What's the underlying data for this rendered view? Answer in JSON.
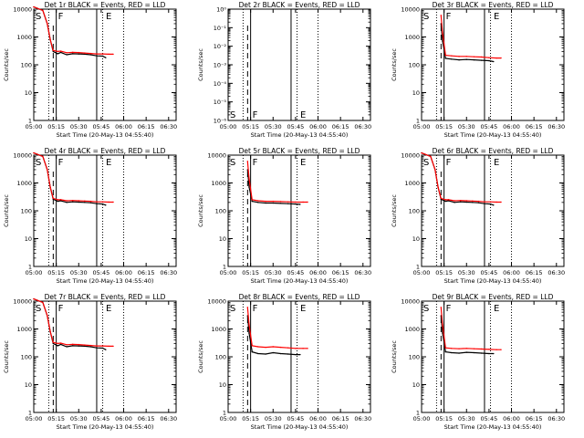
{
  "figure": {
    "xlabel": "Start Time (20-May-13 04:55:40)",
    "ylabel": "Counts/sec",
    "x_ticks": [
      "05:00",
      "05:15",
      "05:30",
      "05:45",
      "06:00",
      "06:15",
      "06:30"
    ],
    "colors": {
      "events": "#000000",
      "lld": "#ff0000",
      "axes": "#000000"
    }
  },
  "chart_data": [
    {
      "type": "line",
      "title": "Det 1r BLACK = Events, RED = LLD",
      "xlabel": "Start Time (20-May-13 04:55:40)",
      "ylabel": "Counts/sec",
      "x_unit": "minutes since 05:00",
      "xlim": [
        0,
        95
      ],
      "yscale": "log",
      "ylim": [
        1,
        10000
      ],
      "y_ticks": [
        "1",
        "10",
        "100",
        "1000",
        "10000"
      ],
      "flags": [
        "S",
        "F",
        "E"
      ],
      "vlines": {
        "dotted": [
          10,
          46,
          60
        ],
        "dashed": [
          13
        ],
        "solid": [
          15,
          42
        ]
      },
      "series": [
        {
          "name": "Events",
          "x": [
            0,
            6,
            9,
            11,
            13,
            16,
            18,
            22,
            26,
            30,
            34,
            38,
            42,
            46,
            48
          ],
          "y": [
            12000,
            9000,
            3000,
            800,
            300,
            250,
            280,
            230,
            250,
            245,
            240,
            230,
            210,
            205,
            180
          ]
        },
        {
          "name": "LLD",
          "x": [
            0,
            6,
            9,
            11,
            13,
            16,
            18,
            22,
            26,
            30,
            34,
            38,
            42,
            46,
            50,
            53
          ],
          "y": [
            12000,
            9000,
            3000,
            800,
            330,
            300,
            310,
            270,
            280,
            275,
            265,
            255,
            245,
            245,
            240,
            240
          ]
        }
      ]
    },
    {
      "type": "line",
      "title": "Det 2r BLACK = Events, RED = LLD",
      "xlabel": "Start Time (20-May-13 04:55:40)",
      "ylabel": "Counts/sec",
      "x_unit": "minutes since 05:00",
      "xlim": [
        0,
        95
      ],
      "yscale": "log",
      "ylim": [
        1e-06,
        1
      ],
      "y_ticks": [
        "10⁰",
        "10⁻¹",
        "10⁻²",
        "10⁻³",
        "10⁻⁴",
        "10⁻⁵",
        "10⁻⁶"
      ],
      "flags": [
        "S",
        "F",
        "E"
      ],
      "vlines": {
        "dotted": [
          10,
          46,
          60
        ],
        "dashed": [
          13
        ],
        "solid": [
          15,
          42
        ]
      },
      "series": []
    },
    {
      "type": "line",
      "title": "Det 3r BLACK = Events, RED = LLD",
      "xlabel": "Start Time (20-May-13 04:55:40)",
      "ylabel": "Counts/sec",
      "x_unit": "minutes since 05:00",
      "xlim": [
        0,
        95
      ],
      "yscale": "log",
      "ylim": [
        1,
        10000
      ],
      "y_ticks": [
        "1",
        "10",
        "100",
        "1000",
        "10000"
      ],
      "flags": [
        "S",
        "F",
        "E"
      ],
      "vlines": {
        "dotted": [
          10,
          46,
          60
        ],
        "dashed": [
          13
        ],
        "solid": [
          15,
          42
        ]
      },
      "series": [
        {
          "name": "Events",
          "x": [
            13,
            14,
            16,
            20,
            25,
            30,
            35,
            40,
            45,
            48
          ],
          "y": [
            3000,
            700,
            170,
            160,
            150,
            155,
            150,
            145,
            140,
            130
          ]
        },
        {
          "name": "LLD",
          "x": [
            13,
            14,
            16,
            20,
            25,
            30,
            35,
            40,
            45,
            50,
            53
          ],
          "y": [
            6000,
            1400,
            220,
            210,
            200,
            200,
            195,
            190,
            180,
            175,
            175
          ]
        }
      ]
    },
    {
      "type": "line",
      "title": "Det 4r BLACK = Events, RED = LLD",
      "xlabel": "Start Time (20-May-13 04:55:40)",
      "ylabel": "Counts/sec",
      "x_unit": "minutes since 05:00",
      "xlim": [
        0,
        95
      ],
      "yscale": "log",
      "ylim": [
        1,
        10000
      ],
      "y_ticks": [
        "1",
        "10",
        "100",
        "1000",
        "10000"
      ],
      "flags": [
        "S",
        "F",
        "E"
      ],
      "vlines": {
        "dotted": [
          10,
          46,
          60
        ],
        "dashed": [
          13
        ],
        "solid": [
          15,
          42
        ]
      },
      "series": [
        {
          "name": "Events",
          "x": [
            0,
            6,
            9,
            11,
            13,
            16,
            18,
            22,
            26,
            30,
            34,
            38,
            42,
            46,
            48
          ],
          "y": [
            12000,
            9000,
            3000,
            700,
            260,
            220,
            230,
            200,
            210,
            205,
            200,
            195,
            180,
            175,
            160
          ]
        },
        {
          "name": "LLD",
          "x": [
            0,
            6,
            9,
            11,
            13,
            16,
            18,
            22,
            26,
            30,
            34,
            38,
            42,
            46,
            50,
            53
          ],
          "y": [
            12000,
            9000,
            3000,
            700,
            280,
            250,
            250,
            230,
            235,
            230,
            225,
            220,
            210,
            210,
            205,
            205
          ]
        }
      ]
    },
    {
      "type": "line",
      "title": "Det 5r BLACK = Events, RED = LLD",
      "xlabel": "Start Time (20-May-13 04:55:40)",
      "ylabel": "Counts/sec",
      "x_unit": "minutes since 05:00",
      "xlim": [
        0,
        95
      ],
      "yscale": "log",
      "ylim": [
        1,
        10000
      ],
      "y_ticks": [
        "1",
        "10",
        "100",
        "1000",
        "10000"
      ],
      "flags": [
        "S",
        "F",
        "E"
      ],
      "vlines": {
        "dotted": [
          10,
          46,
          60
        ],
        "dashed": [
          13
        ],
        "solid": [
          15,
          42
        ]
      },
      "series": [
        {
          "name": "Events",
          "x": [
            13,
            14,
            16,
            20,
            25,
            30,
            35,
            40,
            45,
            48
          ],
          "y": [
            3000,
            700,
            220,
            200,
            190,
            190,
            185,
            180,
            175,
            170
          ]
        },
        {
          "name": "LLD",
          "x": [
            13,
            14,
            16,
            20,
            25,
            30,
            35,
            40,
            45,
            50,
            53
          ],
          "y": [
            6000,
            1400,
            250,
            230,
            220,
            220,
            215,
            210,
            205,
            205,
            205
          ]
        }
      ]
    },
    {
      "type": "line",
      "title": "Det 6r BLACK = Events, RED = LLD",
      "xlabel": "Start Time (20-May-13 04:55:40)",
      "ylabel": "Counts/sec",
      "x_unit": "minutes since 05:00",
      "xlim": [
        0,
        95
      ],
      "yscale": "log",
      "ylim": [
        1,
        10000
      ],
      "y_ticks": [
        "1",
        "10",
        "100",
        "1000",
        "10000"
      ],
      "flags": [
        "S",
        "F",
        "E"
      ],
      "vlines": {
        "dotted": [
          10,
          46,
          60
        ],
        "dashed": [
          13
        ],
        "solid": [
          15,
          42
        ]
      },
      "series": [
        {
          "name": "Events",
          "x": [
            0,
            6,
            9,
            11,
            13,
            16,
            18,
            22,
            26,
            30,
            34,
            38,
            42,
            46,
            48
          ],
          "y": [
            12000,
            9000,
            3000,
            700,
            260,
            220,
            230,
            200,
            210,
            205,
            200,
            195,
            180,
            175,
            160
          ]
        },
        {
          "name": "LLD",
          "x": [
            0,
            6,
            9,
            11,
            13,
            16,
            18,
            22,
            26,
            30,
            34,
            38,
            42,
            46,
            50,
            53
          ],
          "y": [
            12000,
            9000,
            3000,
            700,
            280,
            250,
            250,
            230,
            235,
            230,
            225,
            220,
            210,
            210,
            205,
            205
          ]
        }
      ]
    },
    {
      "type": "line",
      "title": "Det 7r BLACK = Events, RED = LLD",
      "xlabel": "Start Time (20-May-13 04:55:40)",
      "ylabel": "Counts/sec",
      "x_unit": "minutes since 05:00",
      "xlim": [
        0,
        95
      ],
      "yscale": "log",
      "ylim": [
        1,
        10000
      ],
      "y_ticks": [
        "1",
        "10",
        "100",
        "1000",
        "10000"
      ],
      "flags": [
        "S",
        "F",
        "E"
      ],
      "vlines": {
        "dotted": [
          10,
          46,
          60
        ],
        "dashed": [
          13
        ],
        "solid": [
          15,
          42
        ]
      },
      "series": [
        {
          "name": "Events",
          "x": [
            0,
            6,
            9,
            11,
            13,
            16,
            18,
            22,
            26,
            30,
            34,
            38,
            42,
            46,
            48
          ],
          "y": [
            12000,
            9000,
            3000,
            800,
            300,
            250,
            280,
            230,
            250,
            245,
            240,
            230,
            210,
            205,
            180
          ]
        },
        {
          "name": "LLD",
          "x": [
            0,
            6,
            9,
            11,
            13,
            16,
            18,
            22,
            26,
            30,
            34,
            38,
            42,
            46,
            50,
            53
          ],
          "y": [
            12000,
            9000,
            3000,
            800,
            330,
            300,
            310,
            270,
            280,
            275,
            265,
            255,
            245,
            245,
            240,
            240
          ]
        }
      ]
    },
    {
      "type": "line",
      "title": "Det 8r BLACK = Events, RED = LLD",
      "xlabel": "Start Time (20-May-13 04:55:40)",
      "ylabel": "Counts/sec",
      "x_unit": "minutes since 05:00",
      "xlim": [
        0,
        95
      ],
      "yscale": "log",
      "ylim": [
        1,
        10000
      ],
      "y_ticks": [
        "1",
        "10",
        "100",
        "1000",
        "10000"
      ],
      "flags": [
        "S",
        "F",
        "E"
      ],
      "vlines": {
        "dotted": [
          10,
          46,
          60
        ],
        "dashed": [
          13
        ],
        "solid": [
          15,
          42
        ]
      },
      "series": [
        {
          "name": "Events",
          "x": [
            13,
            14,
            16,
            20,
            25,
            30,
            35,
            40,
            45,
            48
          ],
          "y": [
            3000,
            700,
            150,
            130,
            125,
            140,
            130,
            125,
            120,
            120
          ]
        },
        {
          "name": "LLD",
          "x": [
            13,
            14,
            16,
            20,
            25,
            30,
            35,
            40,
            45,
            50,
            53
          ],
          "y": [
            6000,
            1400,
            250,
            230,
            220,
            230,
            220,
            210,
            200,
            200,
            200
          ]
        }
      ]
    },
    {
      "type": "line",
      "title": "Det 9r BLACK = Events, RED = LLD",
      "xlabel": "Start Time (20-May-13 04:55:40)",
      "ylabel": "Counts/sec",
      "x_unit": "minutes since 05:00",
      "xlim": [
        0,
        95
      ],
      "yscale": "log",
      "ylim": [
        1,
        10000
      ],
      "y_ticks": [
        "1",
        "10",
        "100",
        "1000",
        "10000"
      ],
      "flags": [
        "S",
        "F",
        "E"
      ],
      "vlines": {
        "dotted": [
          10,
          46,
          60
        ],
        "dashed": [
          13
        ],
        "solid": [
          15,
          42
        ]
      },
      "series": [
        {
          "name": "Events",
          "x": [
            13,
            14,
            16,
            20,
            25,
            30,
            35,
            40,
            45,
            48
          ],
          "y": [
            3000,
            700,
            150,
            140,
            135,
            145,
            140,
            135,
            130,
            130
          ]
        },
        {
          "name": "LLD",
          "x": [
            13,
            14,
            16,
            20,
            25,
            30,
            35,
            40,
            45,
            50,
            53
          ],
          "y": [
            6000,
            1400,
            210,
            200,
            195,
            200,
            195,
            190,
            185,
            180,
            180
          ]
        }
      ]
    }
  ]
}
